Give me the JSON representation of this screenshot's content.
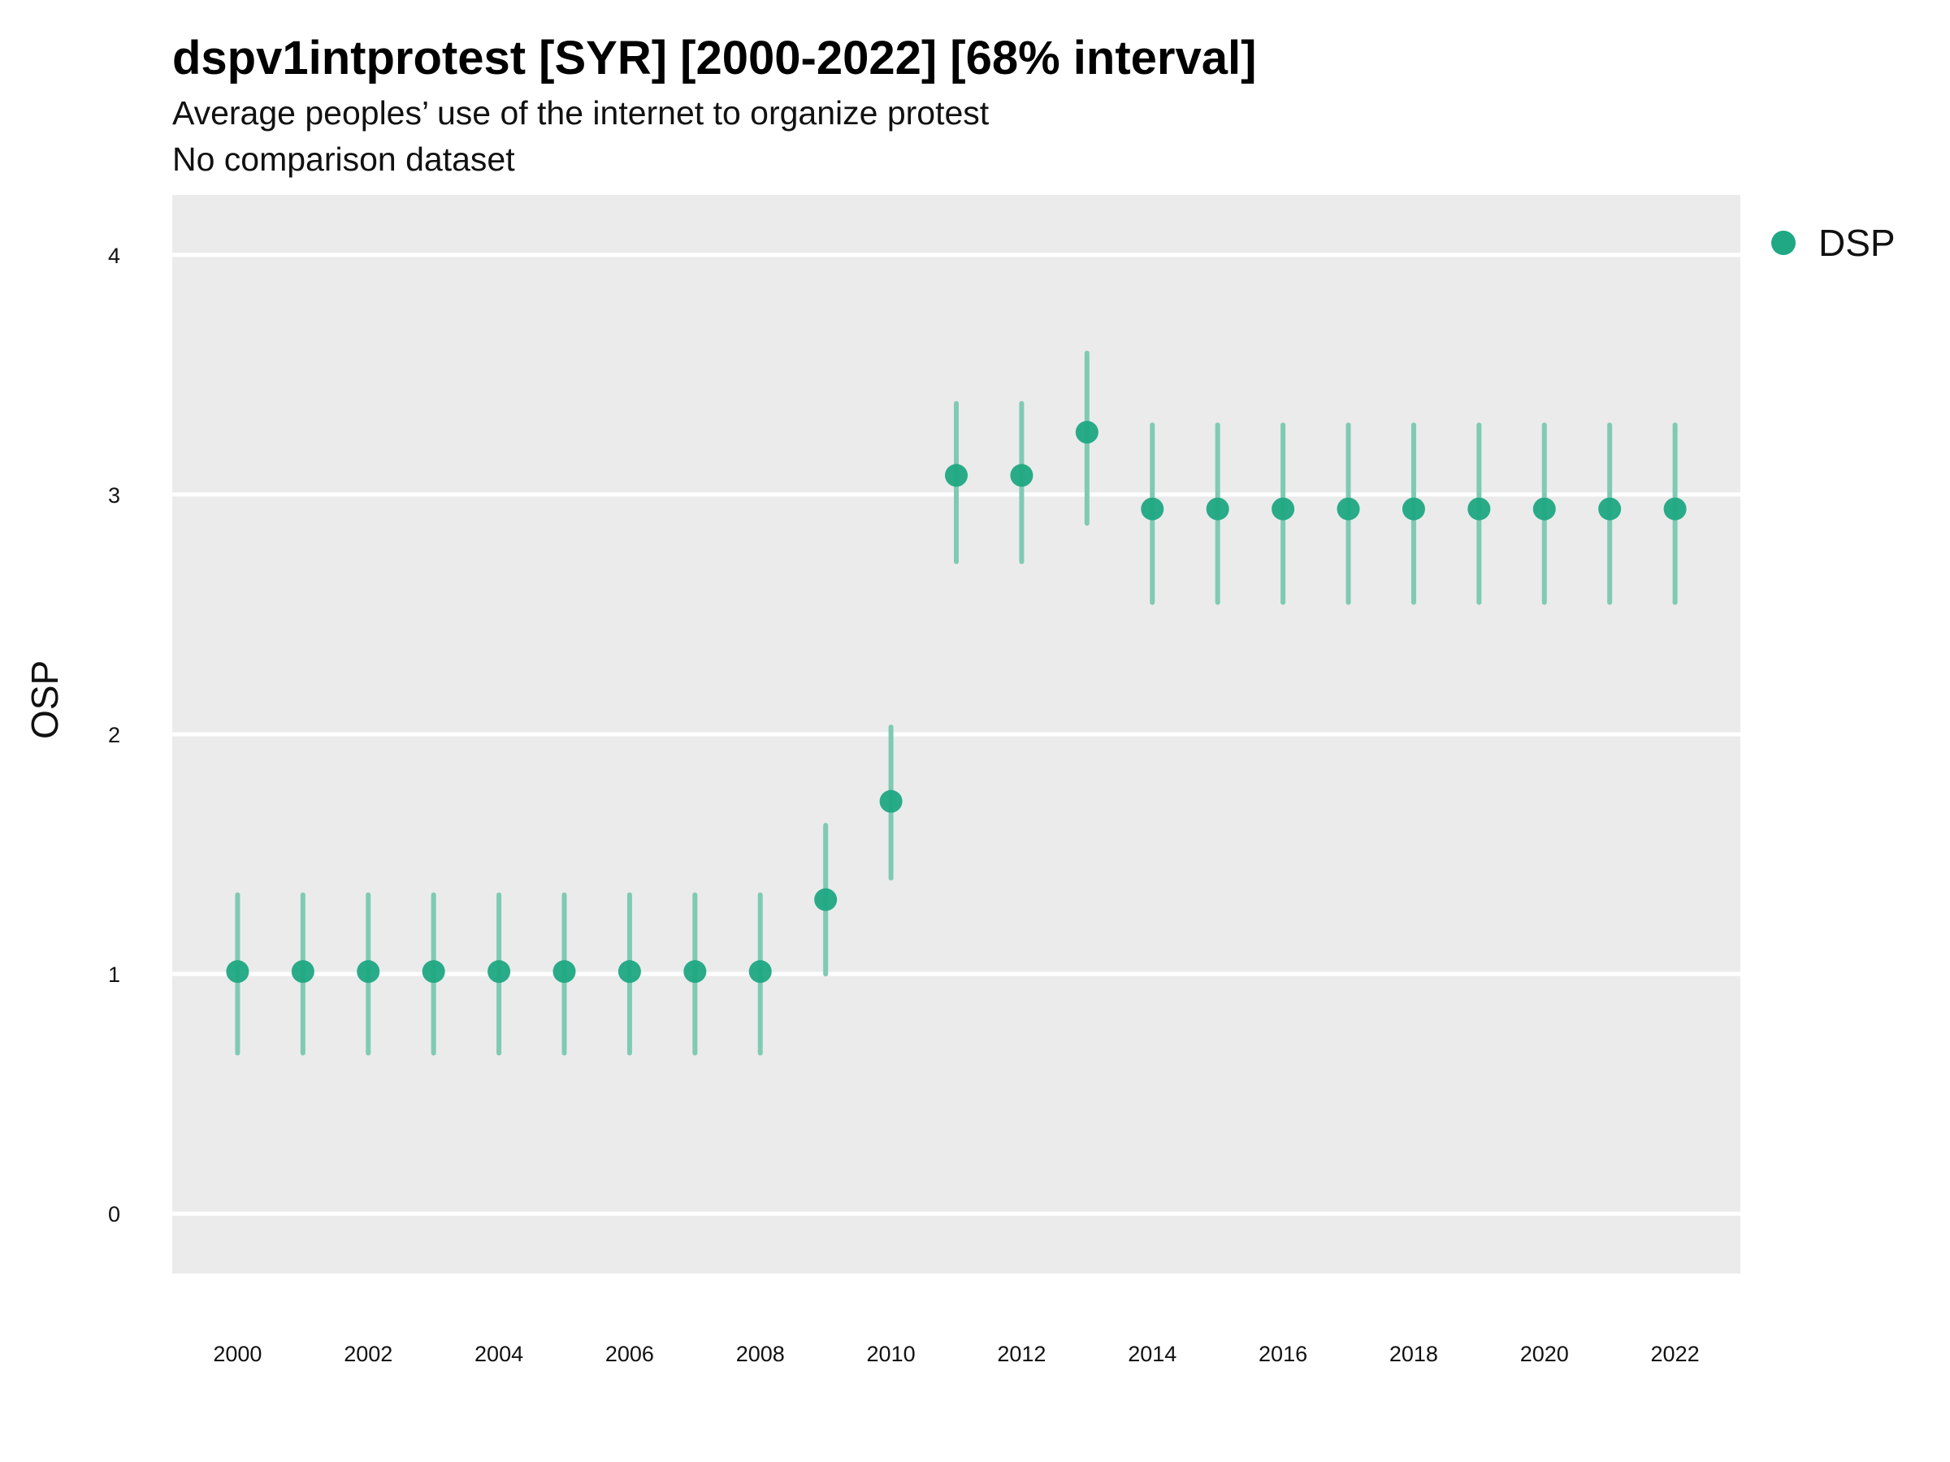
{
  "chart_data": {
    "type": "scatter",
    "title": "dspv1intprotest [SYR] [2000-2022] [68% interval]",
    "subtitle": "Average peoples’ use of the internet to organize protest",
    "caption": "No comparison dataset",
    "xlabel": "",
    "ylabel": "OSP",
    "xlim": [
      1999,
      2023
    ],
    "ylim": [
      -0.25,
      4.25
    ],
    "x_ticks": [
      2000,
      2002,
      2004,
      2006,
      2008,
      2010,
      2012,
      2014,
      2016,
      2018,
      2020,
      2022
    ],
    "y_ticks": [
      0,
      1,
      2,
      3,
      4
    ],
    "grid": true,
    "legend_position": "top-right",
    "series": [
      {
        "name": "DSP",
        "color": "#1fa883",
        "interval_color": "#7fcab3",
        "x": [
          2000,
          2001,
          2002,
          2003,
          2004,
          2005,
          2006,
          2007,
          2008,
          2009,
          2010,
          2011,
          2012,
          2013,
          2014,
          2015,
          2016,
          2017,
          2018,
          2019,
          2020,
          2021,
          2022
        ],
        "y": [
          1.01,
          1.01,
          1.01,
          1.01,
          1.01,
          1.01,
          1.01,
          1.01,
          1.01,
          1.31,
          1.72,
          3.08,
          3.08,
          3.26,
          2.94,
          2.94,
          2.94,
          2.94,
          2.94,
          2.94,
          2.94,
          2.94,
          2.94
        ],
        "lower": [
          0.67,
          0.67,
          0.67,
          0.67,
          0.67,
          0.67,
          0.67,
          0.67,
          0.67,
          1.0,
          1.4,
          2.72,
          2.72,
          2.88,
          2.55,
          2.55,
          2.55,
          2.55,
          2.55,
          2.55,
          2.55,
          2.55,
          2.55
        ],
        "upper": [
          1.33,
          1.33,
          1.33,
          1.33,
          1.33,
          1.33,
          1.33,
          1.33,
          1.33,
          1.62,
          2.03,
          3.38,
          3.38,
          3.59,
          3.29,
          3.29,
          3.29,
          3.29,
          3.29,
          3.29,
          3.29,
          3.29,
          3.29
        ]
      }
    ]
  }
}
